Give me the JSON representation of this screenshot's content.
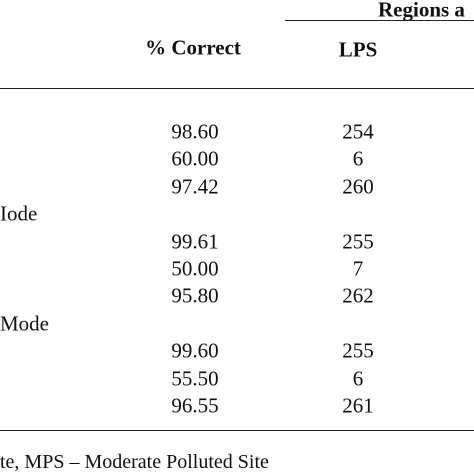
{
  "header": {
    "group_title": "Regions a",
    "columns": [
      "% Correct",
      "LPS"
    ]
  },
  "table": {
    "rows": [
      {
        "values": [
          "98.60",
          "254"
        ]
      },
      {
        "values": [
          "60.00",
          "6"
        ]
      },
      {
        "values": [
          "97.42",
          "260"
        ]
      },
      {
        "label": "Iode"
      },
      {
        "values": [
          "99.61",
          "255"
        ]
      },
      {
        "values": [
          "50.00",
          "7"
        ]
      },
      {
        "values": [
          "95.80",
          "262"
        ]
      },
      {
        "label": "Mode"
      },
      {
        "values": [
          "99.60",
          "255"
        ]
      },
      {
        "values": [
          "55.50",
          "6"
        ]
      },
      {
        "values": [
          "96.55",
          "261"
        ]
      }
    ]
  },
  "footer": {
    "note": "te, MPS – Moderate Polluted Site"
  }
}
